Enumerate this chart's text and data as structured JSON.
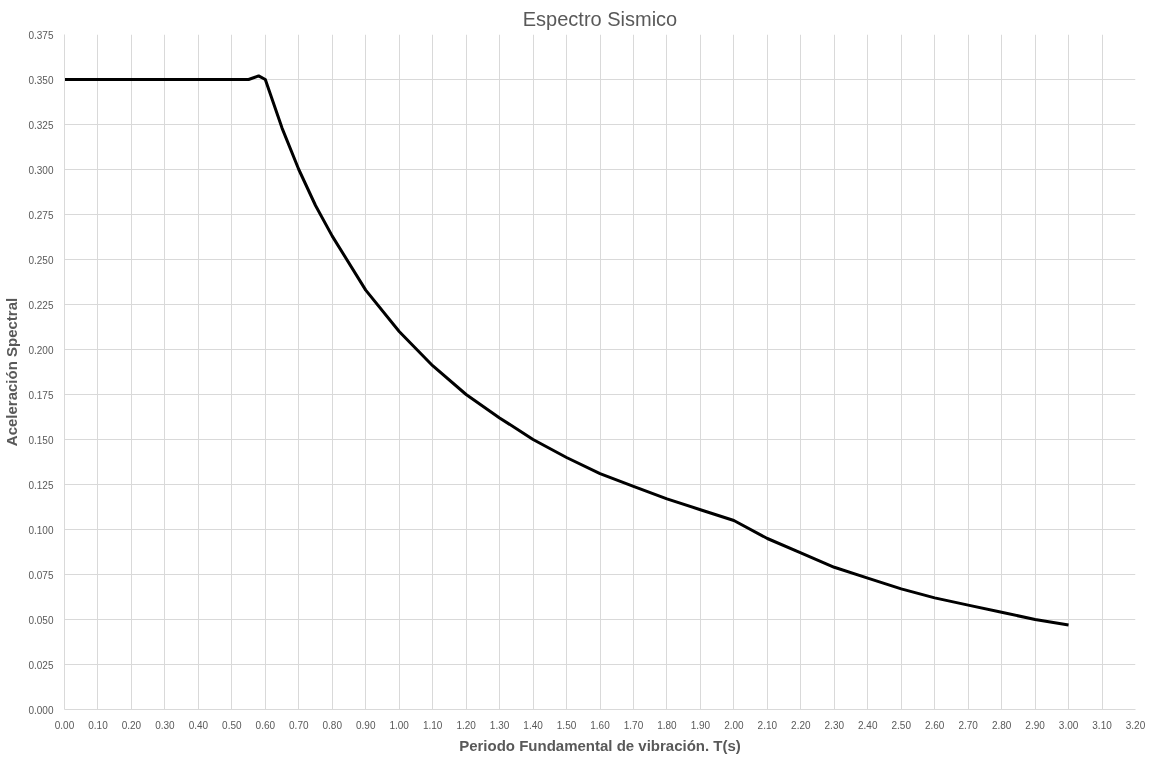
{
  "chart_data": {
    "type": "line",
    "title": "Espectro Sismico",
    "xlabel": "Periodo Fundamental de vibración. T(s)",
    "ylabel": "Aceleración Spectral",
    "x": [
      0,
      0.1,
      0.2,
      0.3,
      0.4,
      0.5,
      0.55,
      0.58,
      0.6,
      0.65,
      0.7,
      0.75,
      0.8,
      0.9,
      1.0,
      1.1,
      1.2,
      1.3,
      1.4,
      1.5,
      1.6,
      1.7,
      1.8,
      1.9,
      2.0,
      2.1,
      2.2,
      2.3,
      2.4,
      2.5,
      2.6,
      2.7,
      2.8,
      2.9,
      3.0
    ],
    "series": [
      {
        "color": "#000000",
        "values": [
          0.35,
          0.35,
          0.35,
          0.35,
          0.35,
          0.35,
          0.35,
          0.352,
          0.35,
          0.323,
          0.3,
          0.28,
          0.263,
          0.233,
          0.21,
          0.191,
          0.175,
          0.162,
          0.15,
          0.14,
          0.131,
          0.124,
          0.117,
          0.111,
          0.105,
          0.095,
          0.087,
          0.079,
          0.073,
          0.067,
          0.062,
          0.058,
          0.054,
          0.05,
          0.047
        ]
      }
    ],
    "xlim": [
      0,
      3.2
    ],
    "ylim": [
      0,
      0.375
    ],
    "xticks": [
      {
        "value": 0,
        "label": "0.00"
      },
      {
        "value": 0.1,
        "label": "0.10"
      },
      {
        "value": 0.2,
        "label": "0.20"
      },
      {
        "value": 0.3,
        "label": "0.30"
      },
      {
        "value": 0.4,
        "label": "0.40"
      },
      {
        "value": 0.5,
        "label": "0.50"
      },
      {
        "value": 0.6,
        "label": "0.60"
      },
      {
        "value": 0.7,
        "label": "0.70"
      },
      {
        "value": 0.8,
        "label": "0.80"
      },
      {
        "value": 0.9,
        "label": "0.90"
      },
      {
        "value": 1.0,
        "label": "1.00"
      },
      {
        "value": 1.1,
        "label": "1.10"
      },
      {
        "value": 1.2,
        "label": "1.20"
      },
      {
        "value": 1.3,
        "label": "1.30"
      },
      {
        "value": 1.4,
        "label": "1.40"
      },
      {
        "value": 1.5,
        "label": "1.50"
      },
      {
        "value": 1.6,
        "label": "1.60"
      },
      {
        "value": 1.7,
        "label": "1.70"
      },
      {
        "value": 1.8,
        "label": "1.80"
      },
      {
        "value": 1.9,
        "label": "1.90"
      },
      {
        "value": 2.0,
        "label": "2.00"
      },
      {
        "value": 2.1,
        "label": "2.10"
      },
      {
        "value": 2.2,
        "label": "2.20"
      },
      {
        "value": 2.3,
        "label": "2.30"
      },
      {
        "value": 2.4,
        "label": "2.40"
      },
      {
        "value": 2.5,
        "label": "2.50"
      },
      {
        "value": 2.6,
        "label": "2.60"
      },
      {
        "value": 2.7,
        "label": "2.70"
      },
      {
        "value": 2.8,
        "label": "2.80"
      },
      {
        "value": 2.9,
        "label": "2.90"
      },
      {
        "value": 3.0,
        "label": "3.00"
      },
      {
        "value": 3.1,
        "label": "3.10"
      },
      {
        "value": 3.2,
        "label": "3.20"
      }
    ],
    "yticks": [
      {
        "value": 0,
        "label": "0.000"
      },
      {
        "value": 0.025,
        "label": "0.025"
      },
      {
        "value": 0.05,
        "label": "0.050"
      },
      {
        "value": 0.075,
        "label": "0.075"
      },
      {
        "value": 0.1,
        "label": "0.100"
      },
      {
        "value": 0.125,
        "label": "0.125"
      },
      {
        "value": 0.15,
        "label": "0.150"
      },
      {
        "value": 0.175,
        "label": "0.175"
      },
      {
        "value": 0.2,
        "label": "0.200"
      },
      {
        "value": 0.225,
        "label": "0.225"
      },
      {
        "value": 0.25,
        "label": "0.250"
      },
      {
        "value": 0.275,
        "label": "0.275"
      },
      {
        "value": 0.3,
        "label": "0.300"
      },
      {
        "value": 0.325,
        "label": "0.325"
      },
      {
        "value": 0.35,
        "label": "0.350"
      },
      {
        "value": 0.375,
        "label": "0.375"
      }
    ],
    "grid": true
  }
}
